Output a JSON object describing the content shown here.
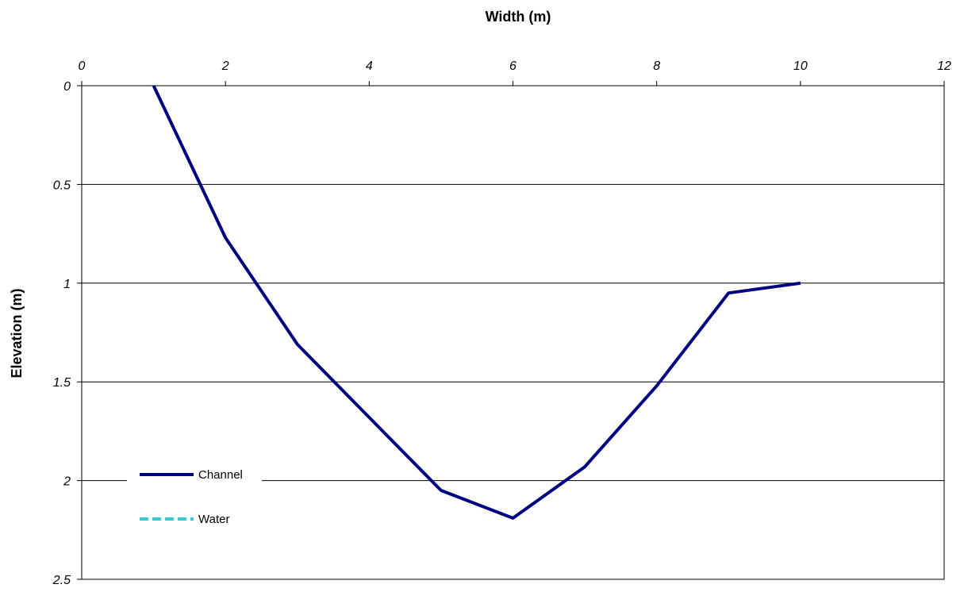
{
  "chart_data": {
    "type": "line",
    "title": "",
    "xlabel": "Width (m)",
    "ylabel": "Elevation (m)",
    "x_axis_position": "top",
    "y_axis_inverted": true,
    "xlim": [
      0,
      12
    ],
    "ylim": [
      0,
      2.5
    ],
    "xticks": [
      "0",
      "2",
      "4",
      "6",
      "8",
      "10",
      "12"
    ],
    "yticks": [
      "0",
      "0.5",
      "1",
      "1.5",
      "2",
      "2.5"
    ],
    "grid": "horizontal",
    "legend_position": "lower-left",
    "series": [
      {
        "name": "Channel",
        "color": "#000080",
        "style": "solid",
        "x": [
          1,
          2,
          3,
          4,
          5,
          6,
          7,
          8,
          9,
          10
        ],
        "y": [
          0,
          0.77,
          1.31,
          1.68,
          2.05,
          2.19,
          1.93,
          1.52,
          1.05,
          1.0
        ]
      },
      {
        "name": "Water",
        "color": "#33CCCC",
        "style": "dashed",
        "x": [],
        "y": []
      }
    ]
  }
}
